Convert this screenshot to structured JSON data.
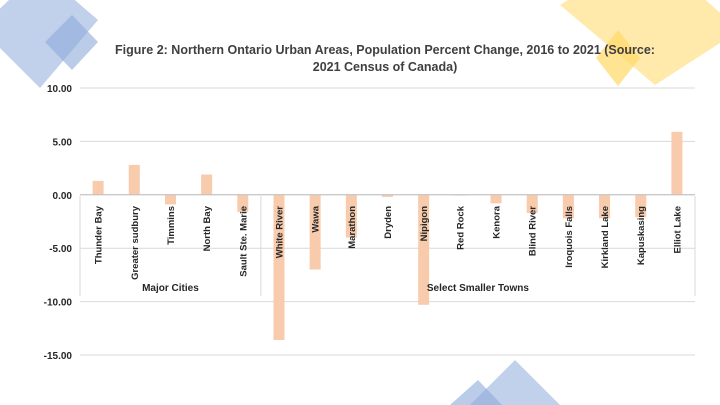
{
  "slide": {
    "title_line1": "Figure 2: Northern Ontario Urban Areas, Population Percent Change, 2016 to 2021 (Source:",
    "title_line2": "2021 Census of Canada)"
  },
  "colors": {
    "bar": "#f8cbad",
    "grid": "#d9d9d9",
    "axis_text": "#262626",
    "deco_blue": "#8eaadb",
    "deco_yellow": "#ffd966"
  },
  "chart_data": {
    "type": "bar",
    "title": "Figure 2: Northern Ontario Urban Areas, Population Percent Change, 2016 to 2021 (Source: 2021 Census of Canada)",
    "categories": [
      "Thunder Bay",
      "Greater sudbury",
      "Timmins",
      "North Bay",
      "Sault Ste. Marie",
      "White River",
      "Wawa",
      "Marathon",
      "Dryden",
      "Nipigon",
      "Red Rock",
      "Kenora",
      "Blind River",
      "Iroquois Falls",
      "Kirkland Lake",
      "Kapuskasing",
      "Elliot Lake"
    ],
    "values": [
      1.3,
      2.8,
      -0.9,
      1.9,
      -1.6,
      -13.6,
      -7.0,
      -4.0,
      -0.2,
      -10.3,
      0.0,
      -0.8,
      -1.7,
      -2.2,
      -2.2,
      -2.1,
      5.9
    ],
    "groups": [
      {
        "label": "Major Cities",
        "count": 5
      },
      {
        "label": "Select Smaller Towns",
        "count": 12
      }
    ],
    "ylim": [
      -15,
      10
    ],
    "yticks": [
      10,
      5,
      0,
      -5,
      -10,
      -15
    ],
    "ytick_labels": [
      "10.00",
      "5.00",
      "0.00",
      "-5.00",
      "-10.00",
      "-15.00"
    ],
    "xlabel": "",
    "ylabel": "",
    "grid": true,
    "legend": "none"
  }
}
